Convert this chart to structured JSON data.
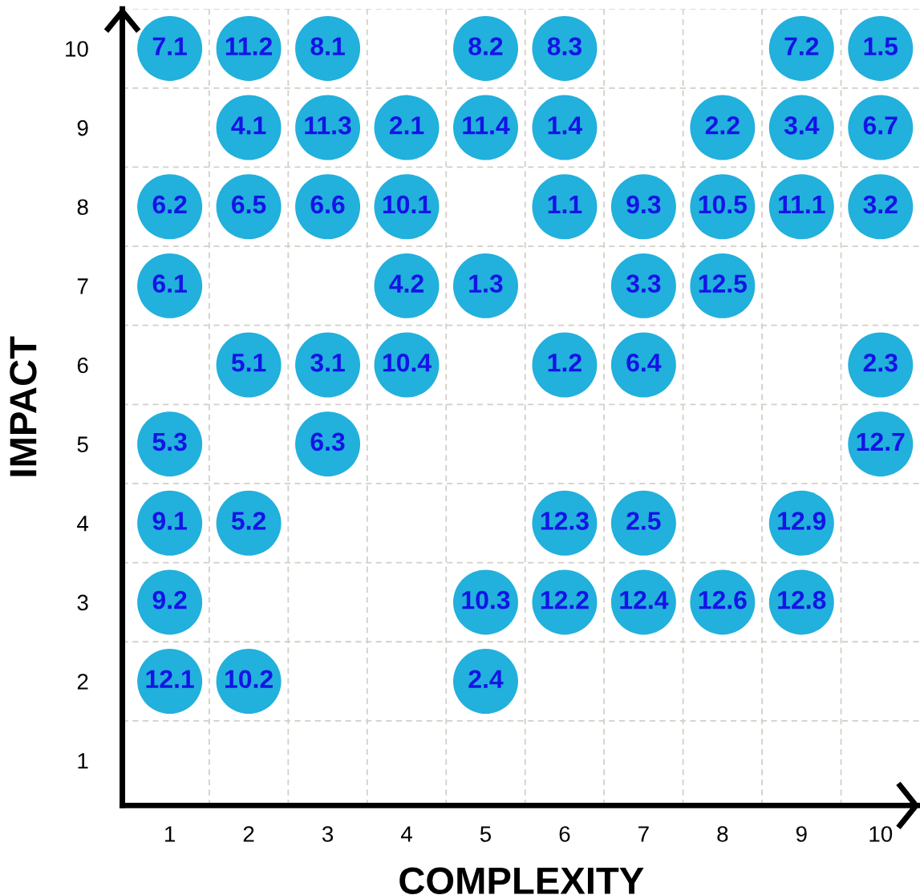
{
  "chart_data": {
    "type": "scatter",
    "xlabel": "COMPLEXITY",
    "ylabel": "IMPACT",
    "xlim": [
      0.4,
      10.5
    ],
    "ylim": [
      0.43,
      10.5
    ],
    "xticks": [
      1,
      2,
      3,
      4,
      5,
      6,
      7,
      8,
      9,
      10
    ],
    "yticks": [
      1,
      2,
      3,
      4,
      5,
      6,
      7,
      8,
      9,
      10
    ],
    "marker": "circle",
    "grid": false,
    "series": [
      {
        "color": "#22b0dc",
        "x": [
          1,
          2,
          3,
          5,
          6,
          9,
          10,
          2,
          3,
          4,
          5,
          6,
          8,
          9,
          10,
          1,
          2,
          3,
          4,
          6,
          7,
          8,
          9,
          10,
          1,
          4,
          5,
          7,
          8,
          2,
          3,
          4,
          6,
          7,
          10,
          1,
          3,
          10,
          1,
          2,
          6,
          7,
          9,
          1,
          5,
          6,
          7,
          8,
          9,
          1,
          2,
          5
        ],
        "values": [
          10,
          10,
          10,
          10,
          10,
          10,
          10,
          9,
          9,
          9,
          9,
          9,
          9,
          9,
          9,
          8,
          8,
          8,
          8,
          8,
          8,
          8,
          8,
          8,
          7,
          7,
          7,
          7,
          7,
          6,
          6,
          6,
          6,
          6,
          6,
          5,
          5,
          5,
          4,
          4,
          4,
          4,
          4,
          3,
          3,
          3,
          3,
          3,
          3,
          2,
          2,
          2
        ]
      }
    ],
    "annotations": [
      {
        "text": "7.1",
        "x": 1,
        "y": 10
      },
      {
        "text": "11.2",
        "x": 2,
        "y": 10
      },
      {
        "text": "8.1",
        "x": 3,
        "y": 10
      },
      {
        "text": "8.2",
        "x": 5,
        "y": 10
      },
      {
        "text": "8.3",
        "x": 6,
        "y": 10
      },
      {
        "text": "7.2",
        "x": 9,
        "y": 10
      },
      {
        "text": "1.5",
        "x": 10,
        "y": 10
      },
      {
        "text": "4.1",
        "x": 2,
        "y": 9
      },
      {
        "text": "11.3",
        "x": 3,
        "y": 9
      },
      {
        "text": "2.1",
        "x": 4,
        "y": 9
      },
      {
        "text": "11.4",
        "x": 5,
        "y": 9
      },
      {
        "text": "1.4",
        "x": 6,
        "y": 9
      },
      {
        "text": "2.2",
        "x": 8,
        "y": 9
      },
      {
        "text": "3.4",
        "x": 9,
        "y": 9
      },
      {
        "text": "6.7",
        "x": 10,
        "y": 9
      },
      {
        "text": "6.2",
        "x": 1,
        "y": 8
      },
      {
        "text": "6.5",
        "x": 2,
        "y": 8
      },
      {
        "text": "6.6",
        "x": 3,
        "y": 8
      },
      {
        "text": "10.1",
        "x": 4,
        "y": 8
      },
      {
        "text": "1.1",
        "x": 6,
        "y": 8
      },
      {
        "text": "9.3",
        "x": 7,
        "y": 8
      },
      {
        "text": "10.5",
        "x": 8,
        "y": 8
      },
      {
        "text": "11.1",
        "x": 9,
        "y": 8
      },
      {
        "text": "3.2",
        "x": 10,
        "y": 8
      },
      {
        "text": "6.1",
        "x": 1,
        "y": 7
      },
      {
        "text": "4.2",
        "x": 4,
        "y": 7
      },
      {
        "text": "1.3",
        "x": 5,
        "y": 7
      },
      {
        "text": "3.3",
        "x": 7,
        "y": 7
      },
      {
        "text": "12.5",
        "x": 8,
        "y": 7
      },
      {
        "text": "5.1",
        "x": 2,
        "y": 6
      },
      {
        "text": "3.1",
        "x": 3,
        "y": 6
      },
      {
        "text": "10.4",
        "x": 4,
        "y": 6
      },
      {
        "text": "1.2",
        "x": 6,
        "y": 6
      },
      {
        "text": "6.4",
        "x": 7,
        "y": 6
      },
      {
        "text": "2.3",
        "x": 10,
        "y": 6
      },
      {
        "text": "5.3",
        "x": 1,
        "y": 5
      },
      {
        "text": "6.3",
        "x": 3,
        "y": 5
      },
      {
        "text": "12.7",
        "x": 10,
        "y": 5
      },
      {
        "text": "9.1",
        "x": 1,
        "y": 4
      },
      {
        "text": "5.2",
        "x": 2,
        "y": 4
      },
      {
        "text": "12.3",
        "x": 6,
        "y": 4
      },
      {
        "text": "2.5",
        "x": 7,
        "y": 4
      },
      {
        "text": "12.9",
        "x": 9,
        "y": 4
      },
      {
        "text": "9.2",
        "x": 1,
        "y": 3
      },
      {
        "text": "10.3",
        "x": 5,
        "y": 3
      },
      {
        "text": "12.2",
        "x": 6,
        "y": 3
      },
      {
        "text": "12.4",
        "x": 7,
        "y": 3
      },
      {
        "text": "12.6",
        "x": 8,
        "y": 3
      },
      {
        "text": "12.8",
        "x": 9,
        "y": 3
      },
      {
        "text": "12.1",
        "x": 1,
        "y": 2
      },
      {
        "text": "10.2",
        "x": 2,
        "y": 2
      },
      {
        "text": "2.4",
        "x": 5,
        "y": 2
      }
    ],
    "ref_lines": [
      {
        "axis": "x",
        "value": 1.5,
        "color": "#d3cfc7",
        "line_style": "dashed"
      },
      {
        "axis": "x",
        "value": 2.5,
        "color": "#d3cfc7",
        "line_style": "dashed"
      },
      {
        "axis": "x",
        "value": 3.5,
        "color": "#d3cfc7",
        "line_style": "dashed"
      },
      {
        "axis": "x",
        "value": 4.5,
        "color": "#d3cfc7",
        "line_style": "dashed"
      },
      {
        "axis": "x",
        "value": 5.5,
        "color": "#d3cfc7",
        "line_style": "dashed"
      },
      {
        "axis": "x",
        "value": 6.5,
        "color": "#d3cfc7",
        "line_style": "dashed"
      },
      {
        "axis": "x",
        "value": 7.5,
        "color": "#d3cfc7",
        "line_style": "dashed"
      },
      {
        "axis": "x",
        "value": 8.5,
        "color": "#d3cfc7",
        "line_style": "dashed"
      },
      {
        "axis": "x",
        "value": 9.5,
        "color": "#d3cfc7",
        "line_style": "dashed"
      },
      {
        "axis": "y",
        "value": 1.5,
        "color": "#d3cfc7",
        "line_style": "dashed"
      },
      {
        "axis": "y",
        "value": 2.5,
        "color": "#d3cfc7",
        "line_style": "dashed"
      },
      {
        "axis": "y",
        "value": 3.5,
        "color": "#d3cfc7",
        "line_style": "dashed"
      },
      {
        "axis": "y",
        "value": 4.5,
        "color": "#d3cfc7",
        "line_style": "dashed"
      },
      {
        "axis": "y",
        "value": 5.5,
        "color": "#d3cfc7",
        "line_style": "dashed"
      },
      {
        "axis": "y",
        "value": 6.5,
        "color": "#d3cfc7",
        "line_style": "dashed"
      },
      {
        "axis": "y",
        "value": 7.5,
        "color": "#d3cfc7",
        "line_style": "dashed"
      },
      {
        "axis": "y",
        "value": 8.5,
        "color": "#d3cfc7",
        "line_style": "dashed"
      },
      {
        "axis": "y",
        "value": 9.5,
        "color": "#d3cfc7",
        "line_style": "dashed"
      },
      {
        "axis": "y",
        "value": 10.5,
        "color": "#d3cfc7",
        "line_style": "dashed"
      }
    ]
  }
}
